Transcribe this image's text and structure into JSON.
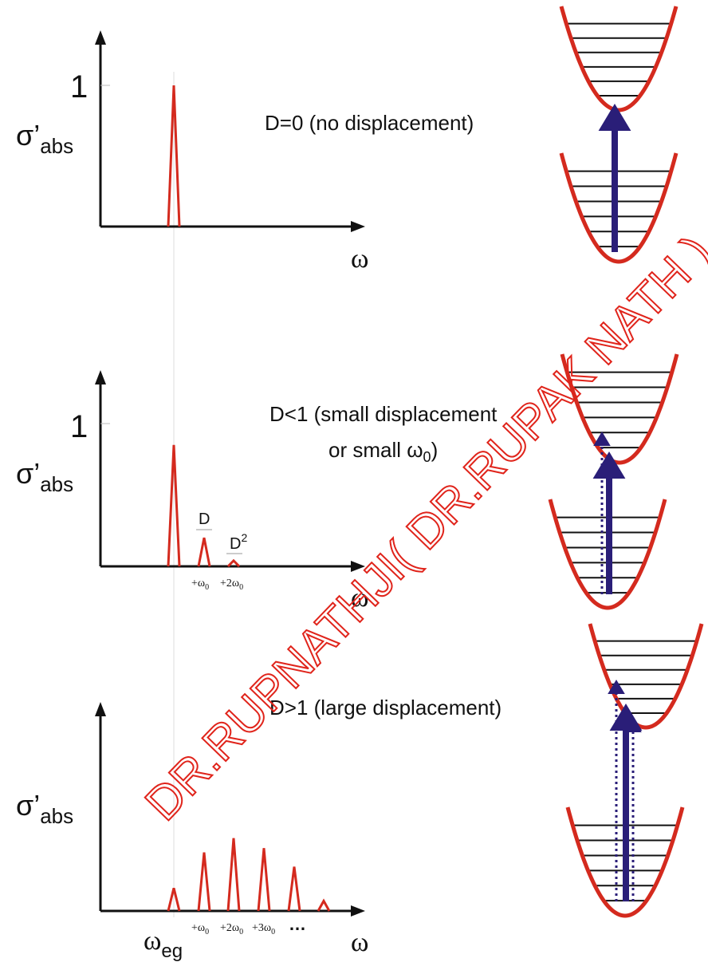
{
  "colors": {
    "axis": "#111111",
    "peak": "#d42a1e",
    "well": "#d42a1e",
    "level": "#111111",
    "arrow": "#2a1e78",
    "watermark": "#e0241b",
    "guide": "#dddddd"
  },
  "panels": [
    {
      "y_tick_label": "1",
      "y_label_main": "σ’",
      "y_label_sub": "abs",
      "x_label": "ω",
      "case_lines": [
        "D=0 (no displacement)"
      ],
      "peaks": [
        1.0
      ],
      "peak_labels": [],
      "x_ticks": []
    },
    {
      "y_tick_label": "1",
      "y_label_main": "σ’",
      "y_label_sub": "abs",
      "x_label": "ω",
      "case_lines": [
        "D<1 (small displacement",
        "or small ω",
        "0",
        ")"
      ],
      "peaks": [
        0.85,
        0.2,
        0.04
      ],
      "peak_labels": [
        {
          "main": "D",
          "sup": ""
        },
        {
          "main": "D",
          "sup": "2"
        }
      ],
      "x_ticks": [
        {
          "main": "+ω",
          "sub": "0",
          "prefix": ""
        },
        {
          "main": "+2ω",
          "sub": "0",
          "prefix": ""
        }
      ]
    },
    {
      "y_tick_label": "",
      "y_label_main": "σ’",
      "y_label_sub": "abs",
      "x_label": "ω",
      "case_lines": [
        "D>1 (large displacement)"
      ],
      "peaks": [
        0.16,
        0.41,
        0.51,
        0.44,
        0.31,
        0.07
      ],
      "peak_labels": [],
      "x_ticks": [
        {
          "main": "+ω",
          "sub": "0",
          "prefix": ""
        },
        {
          "main": "+2ω",
          "sub": "0",
          "prefix": ""
        },
        {
          "main": "+3ω",
          "sub": "0",
          "prefix": ""
        }
      ],
      "ellipsis": "…"
    }
  ],
  "bottom_label": {
    "main": "ω",
    "sub": "eg"
  },
  "watermark": "DR.RUPNATHJI( DR.RUPAK NATH )"
}
